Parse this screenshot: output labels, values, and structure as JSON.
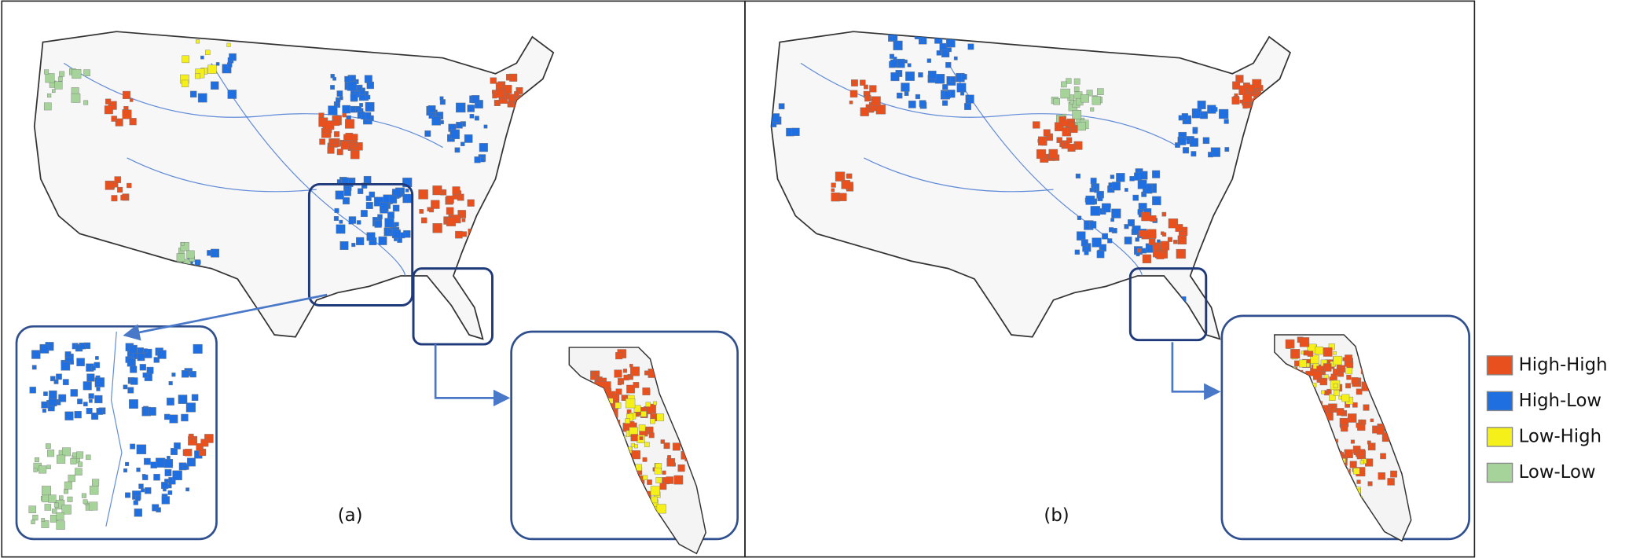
{
  "panels": [
    {
      "label": "(a)"
    },
    {
      "label": "(b)"
    }
  ],
  "legend": {
    "items": [
      {
        "label": "High-High",
        "color": "#e8501e"
      },
      {
        "label": "High-Low",
        "color": "#1f6fe0"
      },
      {
        "label": "Low-High",
        "color": "#f5f01a"
      },
      {
        "label": "Low-Low",
        "color": "#a6d39a"
      }
    ]
  }
}
